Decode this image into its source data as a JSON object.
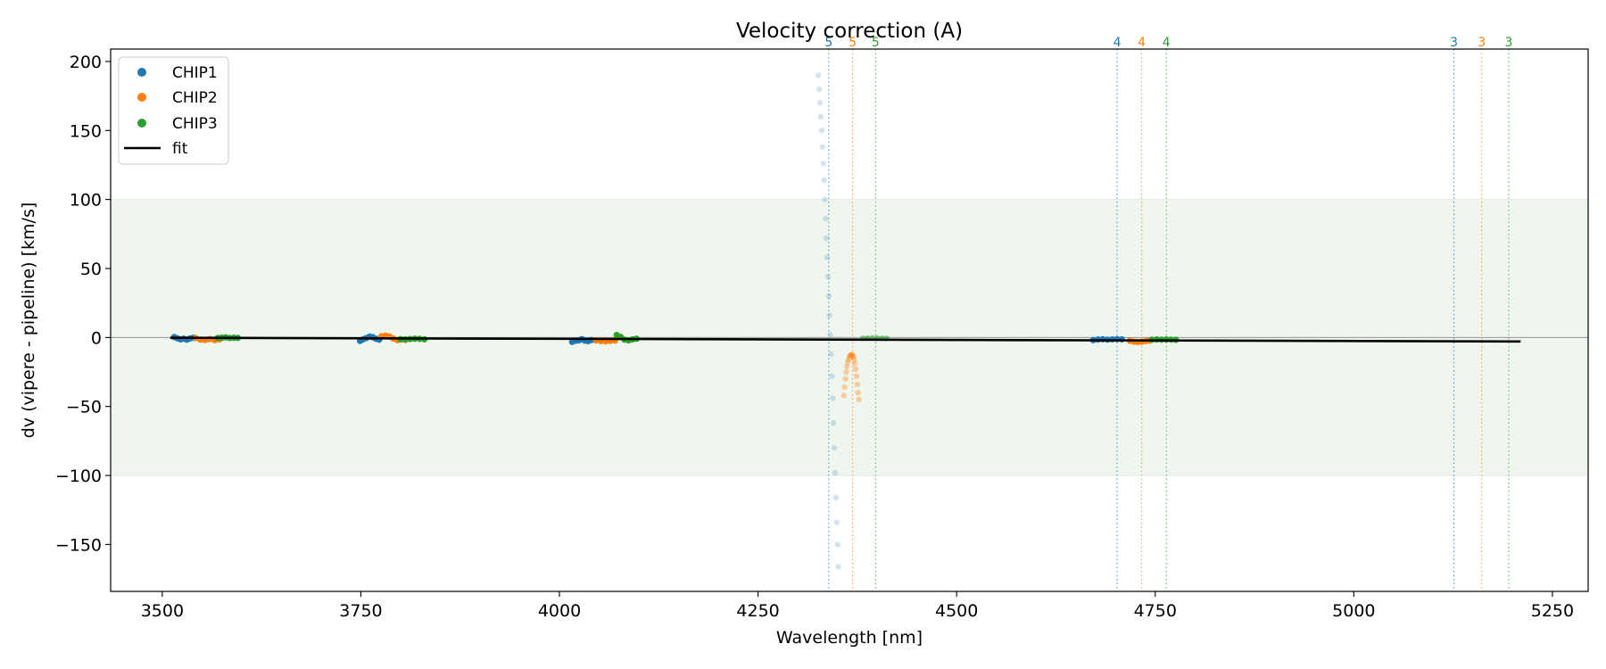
{
  "chart_data": {
    "type": "scatter",
    "title": "Velocity correction (A)",
    "xlabel": "Wavelength [nm]",
    "ylabel": "dv (vipere - pipeline) [km/s]",
    "xlim": [
      3435,
      5295
    ],
    "ylim": [
      -184,
      209
    ],
    "xticks": [
      3500,
      3750,
      4000,
      4250,
      4500,
      4750,
      5000,
      5250
    ],
    "yticks": [
      -150,
      -100,
      -50,
      0,
      50,
      100,
      150,
      200
    ],
    "xtick_labels": [
      "3500",
      "3750",
      "4000",
      "4250",
      "4500",
      "4750",
      "5000",
      "5250"
    ],
    "ytick_labels": [
      "−150",
      "−100",
      "−50",
      "0",
      "50",
      "100",
      "150",
      "200"
    ],
    "shaded_band": {
      "y0": -100,
      "y1": 100,
      "color": "#eef6ee"
    },
    "zero_line": 0,
    "legend": {
      "position": "top-left",
      "entries": [
        {
          "label": "CHIP1",
          "marker": "dot",
          "color": "#1f77b4"
        },
        {
          "label": "CHIP2",
          "marker": "dot",
          "color": "#ff7f0e"
        },
        {
          "label": "CHIP3",
          "marker": "dot",
          "color": "#2ca02c"
        },
        {
          "label": "fit",
          "marker": "line",
          "color": "#000000"
        }
      ]
    },
    "fit": {
      "x": [
        3510,
        5210
      ],
      "y": [
        -0.2,
        -2.9
      ],
      "color": "#000000"
    },
    "order_lines": [
      {
        "x": 4339,
        "label": "5",
        "color": "#1f77b4"
      },
      {
        "x": 4369,
        "label": "5",
        "color": "#ff7f0e"
      },
      {
        "x": 4398,
        "label": "5",
        "color": "#2ca02c"
      },
      {
        "x": 4702,
        "label": "4",
        "color": "#1f77b4"
      },
      {
        "x": 4733,
        "label": "4",
        "color": "#ff7f0e"
      },
      {
        "x": 4764,
        "label": "4",
        "color": "#2ca02c"
      },
      {
        "x": 5126,
        "label": "3",
        "color": "#1f77b4"
      },
      {
        "x": 5161,
        "label": "3",
        "color": "#ff7f0e"
      },
      {
        "x": 5195,
        "label": "3",
        "color": "#2ca02c"
      }
    ],
    "series": [
      {
        "name": "CHIP1",
        "color": "#1f77b4",
        "segments": [
          {
            "alpha": 1,
            "points": [
              [
                3515,
                0.3
              ],
              [
                3519,
                -0.6
              ],
              [
                3523,
                -1.4
              ],
              [
                3527,
                -0.9
              ],
              [
                3531,
                -1.6
              ],
              [
                3535,
                -0.7
              ],
              [
                3539,
                -0.2
              ]
            ]
          },
          {
            "alpha": 1,
            "points": [
              [
                3749,
                -2.5
              ],
              [
                3753,
                -1.3
              ],
              [
                3757,
                -0.4
              ],
              [
                3761,
                0.6
              ],
              [
                3765,
                0.2
              ],
              [
                3769,
                -0.9
              ],
              [
                3773,
                -1.6
              ]
            ]
          },
          {
            "alpha": 1,
            "points": [
              [
                4016,
                -3.2
              ],
              [
                4020,
                -2.4
              ],
              [
                4024,
                -2.1
              ],
              [
                4028,
                -1.2
              ],
              [
                4032,
                -2.3
              ],
              [
                4036,
                -2.7
              ],
              [
                4040,
                -1.9
              ]
            ]
          },
          {
            "alpha": 0.2,
            "points": [
              [
                4326,
                190
              ],
              [
                4327,
                180
              ],
              [
                4328,
                170
              ],
              [
                4329,
                160
              ],
              [
                4330,
                150
              ],
              [
                4331,
                138
              ],
              [
                4332,
                126
              ],
              [
                4333,
                114
              ],
              [
                4334,
                100
              ],
              [
                4335,
                86
              ],
              [
                4336,
                72
              ],
              [
                4337,
                58
              ],
              [
                4338,
                44
              ],
              [
                4339,
                30
              ],
              [
                4340,
                16
              ],
              [
                4341,
                2
              ],
              [
                4342,
                -12
              ],
              [
                4343,
                -28
              ],
              [
                4344,
                -44
              ],
              [
                4345,
                -62
              ],
              [
                4346,
                -80
              ],
              [
                4347,
                -98
              ],
              [
                4348,
                -116
              ],
              [
                4349,
                -134
              ],
              [
                4350,
                -150
              ],
              [
                4351,
                -166
              ]
            ]
          },
          {
            "alpha": 1,
            "points": [
              [
                4672,
                -1.9
              ],
              [
                4678,
                -1.5
              ],
              [
                4684,
                -1.3
              ],
              [
                4690,
                -1.6
              ],
              [
                4696,
                -1.4
              ],
              [
                4702,
                -1.2
              ],
              [
                4708,
                -1.4
              ]
            ]
          }
        ]
      },
      {
        "name": "CHIP2",
        "color": "#ff7f0e",
        "segments": [
          {
            "alpha": 1,
            "points": [
              [
                3542,
                -0.4
              ],
              [
                3548,
                -1.6
              ],
              [
                3554,
                -1.8
              ],
              [
                3560,
                -1.2
              ],
              [
                3566,
                -1.9
              ],
              [
                3572,
                -1.4
              ]
            ]
          },
          {
            "alpha": 1,
            "points": [
              [
                3776,
                0.9
              ],
              [
                3781,
                1.4
              ],
              [
                3786,
                0.7
              ],
              [
                3791,
                -0.8
              ],
              [
                3796,
                -1.9
              ],
              [
                3801,
                -1.5
              ],
              [
                3806,
                -1.8
              ]
            ]
          },
          {
            "alpha": 1,
            "points": [
              [
                4046,
                -2.1
              ],
              [
                4052,
                -2.6
              ],
              [
                4058,
                -2.8
              ],
              [
                4064,
                -2.5
              ],
              [
                4070,
                -2.2
              ]
            ]
          },
          {
            "alpha": 0.35,
            "points": [
              [
                4358,
                -42
              ],
              [
                4359,
                -36
              ],
              [
                4360,
                -30
              ],
              [
                4361,
                -25
              ],
              [
                4362,
                -21
              ],
              [
                4363,
                -18
              ],
              [
                4364,
                -16
              ],
              [
                4365,
                -14
              ],
              [
                4366,
                -13
              ],
              [
                4367,
                -12.5
              ],
              [
                4368,
                -12.5
              ],
              [
                4369,
                -13
              ],
              [
                4370,
                -14
              ],
              [
                4371,
                -16
              ],
              [
                4372,
                -19
              ],
              [
                4373,
                -23
              ],
              [
                4374,
                -28
              ],
              [
                4375,
                -34
              ],
              [
                4376,
                -40
              ],
              [
                4377,
                -45
              ]
            ]
          },
          {
            "alpha": 1,
            "points": [
              [
                4718,
                -2.4
              ],
              [
                4723,
                -3.0
              ],
              [
                4728,
                -3.3
              ],
              [
                4733,
                -3.1
              ],
              [
                4738,
                -2.6
              ],
              [
                4743,
                -2.3
              ]
            ]
          }
        ]
      },
      {
        "name": "CHIP3",
        "color": "#2ca02c",
        "segments": [
          {
            "alpha": 1,
            "points": [
              [
                3570,
                -0.3
              ],
              [
                3575,
                -0.2
              ],
              [
                3580,
                0.1
              ],
              [
                3585,
                -0.4
              ],
              [
                3590,
                -0.2
              ],
              [
                3595,
                -0.3
              ]
            ]
          },
          {
            "alpha": 1,
            "points": [
              [
                3800,
                -1.2
              ],
              [
                3806,
                -1.4
              ],
              [
                3812,
                -1.1
              ],
              [
                3818,
                -0.9
              ],
              [
                3824,
                -1.0
              ],
              [
                3830,
                -1.3
              ]
            ]
          },
          {
            "alpha": 1,
            "points": [
              [
                4072,
                1.8
              ],
              [
                4077,
                0.4
              ],
              [
                4082,
                -1.6
              ],
              [
                4087,
                -2.1
              ],
              [
                4092,
                -1.4
              ],
              [
                4097,
                -0.9
              ]
            ]
          },
          {
            "alpha": 0.6,
            "points": [
              [
                4382,
                -0.6
              ],
              [
                4388,
                -0.5
              ],
              [
                4394,
                -0.4
              ],
              [
                4400,
                -0.5
              ],
              [
                4406,
                -0.6
              ],
              [
                4412,
                -0.7
              ]
            ]
          },
          {
            "alpha": 1,
            "points": [
              [
                4746,
                -1.6
              ],
              [
                4752,
                -1.5
              ],
              [
                4758,
                -1.6
              ],
              [
                4764,
                -1.5
              ],
              [
                4770,
                -1.6
              ],
              [
                4776,
                -1.7
              ]
            ]
          }
        ]
      }
    ]
  }
}
